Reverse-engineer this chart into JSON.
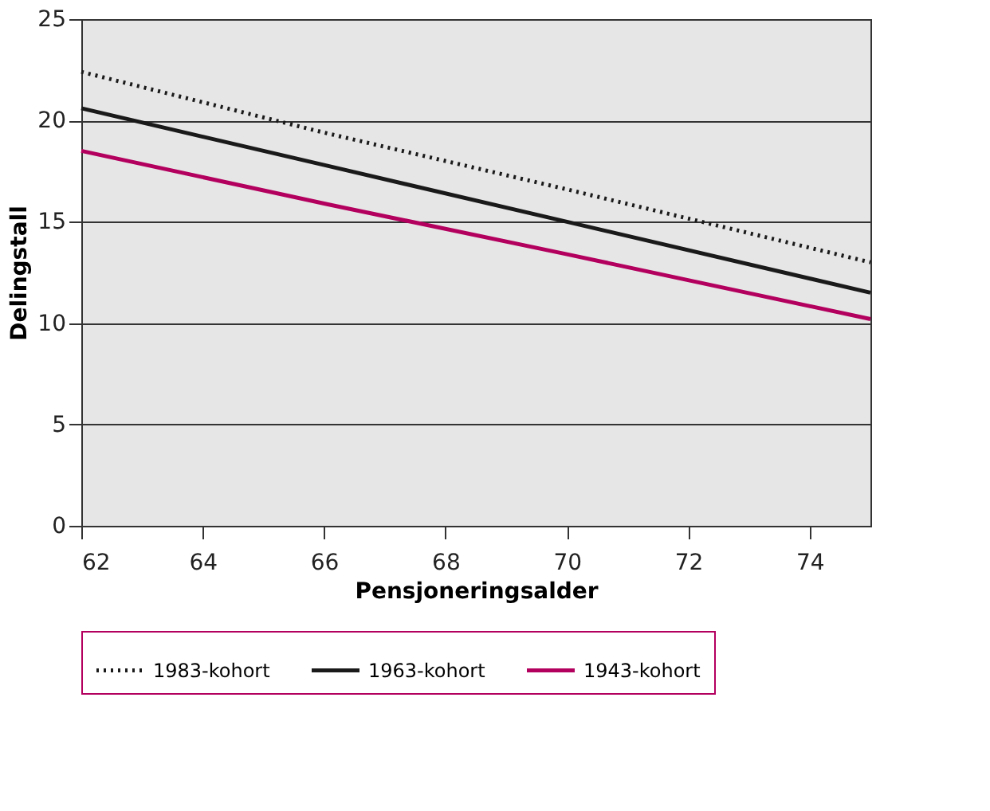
{
  "chart_data": {
    "type": "line",
    "xlabel": "Pensjoneringsalder",
    "ylabel": "Delingstall",
    "x": [
      62,
      66,
      70,
      75
    ],
    "series": [
      {
        "name": "1983-kohort",
        "color": "#1a1a1a",
        "values": [
          22.4,
          19.4,
          16.6,
          13.0
        ],
        "line_style": "dotted"
      },
      {
        "name": "1963-kohort",
        "color": "#1a1a1a",
        "values": [
          20.6,
          17.8,
          15.0,
          11.5
        ],
        "line_style": "solid"
      },
      {
        "name": "1943-kohort",
        "color": "#b3005e",
        "values": [
          18.5,
          15.9,
          13.4,
          10.2
        ],
        "line_style": "solid"
      }
    ],
    "xlim": [
      62,
      75
    ],
    "xticks": [
      62,
      64,
      66,
      68,
      70,
      72,
      74
    ],
    "ylim": [
      0,
      25
    ],
    "yticks": [
      0,
      5,
      10,
      15,
      20,
      25
    ],
    "grid": "y",
    "legend": "bottom",
    "marker": "none"
  }
}
